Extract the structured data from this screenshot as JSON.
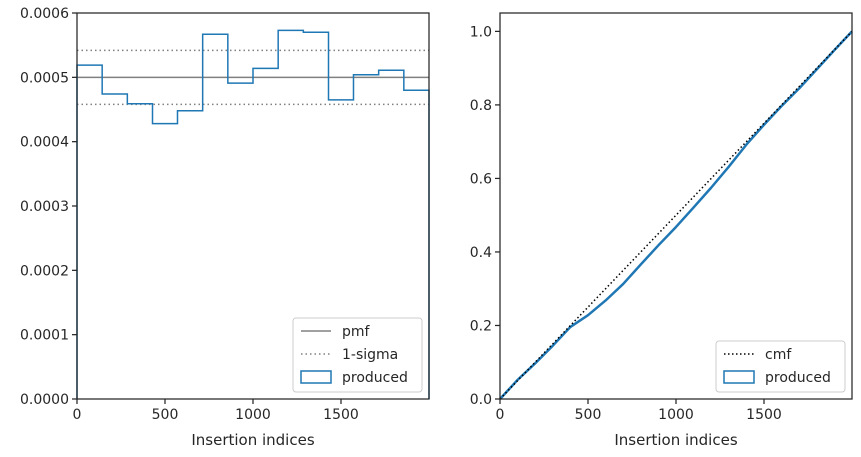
{
  "colors": {
    "produced": "#1f77b4",
    "pmf": "#808080",
    "sigma": "#808080",
    "cmf": "#000000",
    "axes": "#262626"
  },
  "chart_data": [
    {
      "type": "step-histogram",
      "xlabel": "Insertion indices",
      "ylabel": "",
      "xlim": [
        0,
        2000
      ],
      "ylim": [
        0,
        0.0006
      ],
      "xticks": [
        0,
        500,
        1000,
        1500
      ],
      "xtick_labels": [
        "0",
        "500",
        "1000",
        "1500"
      ],
      "yticks": [
        0,
        0.0001,
        0.0002,
        0.0003,
        0.0004,
        0.0005,
        0.0006
      ],
      "ytick_labels": [
        "0.0000",
        "0.0001",
        "0.0002",
        "0.0003",
        "0.0004",
        "0.0005",
        "0.0006"
      ],
      "bin_edges": [
        0,
        143,
        286,
        429,
        571,
        714,
        857,
        1000,
        1143,
        1286,
        1429,
        1571,
        1714,
        1857,
        2000
      ],
      "produced": [
        0.000519,
        0.000474,
        0.000459,
        0.000428,
        0.000448,
        0.000567,
        0.000491,
        0.000514,
        0.000573,
        0.00057,
        0.000465,
        0.000504,
        0.000511,
        0.00048
      ],
      "pmf": 0.0005,
      "sigma_band": [
        0.000458,
        0.000542
      ],
      "legend": {
        "position": "lower right",
        "entries": [
          {
            "label": "pmf",
            "style": "solid"
          },
          {
            "label": "1-sigma",
            "style": "dotted"
          },
          {
            "label": "produced",
            "style": "patch"
          }
        ]
      }
    },
    {
      "type": "line",
      "xlabel": "Insertion indices",
      "ylabel": "",
      "xlim": [
        0,
        2000
      ],
      "ylim": [
        0,
        1.05
      ],
      "xticks": [
        0,
        500,
        1000,
        1500
      ],
      "xtick_labels": [
        "0",
        "500",
        "1000",
        "1500"
      ],
      "yticks": [
        0,
        0.2,
        0.4,
        0.6,
        0.8,
        1.0
      ],
      "ytick_labels": [
        "0.0",
        "0.2",
        "0.4",
        "0.6",
        "0.8",
        "1.0"
      ],
      "cmf": {
        "x": [
          0,
          2000
        ],
        "y": [
          0,
          1.0
        ]
      },
      "produced": {
        "x": [
          0,
          100,
          200,
          300,
          400,
          500,
          600,
          700,
          800,
          900,
          1000,
          1100,
          1200,
          1300,
          1400,
          1500,
          1600,
          1700,
          1800,
          1900,
          2000
        ],
        "y": [
          0,
          0.052,
          0.097,
          0.145,
          0.196,
          0.228,
          0.268,
          0.313,
          0.366,
          0.418,
          0.468,
          0.521,
          0.575,
          0.632,
          0.692,
          0.746,
          0.797,
          0.845,
          0.897,
          0.949,
          1.0
        ]
      },
      "legend": {
        "position": "lower right",
        "entries": [
          {
            "label": "cmf",
            "style": "dotted"
          },
          {
            "label": "produced",
            "style": "patch"
          }
        ]
      }
    }
  ]
}
